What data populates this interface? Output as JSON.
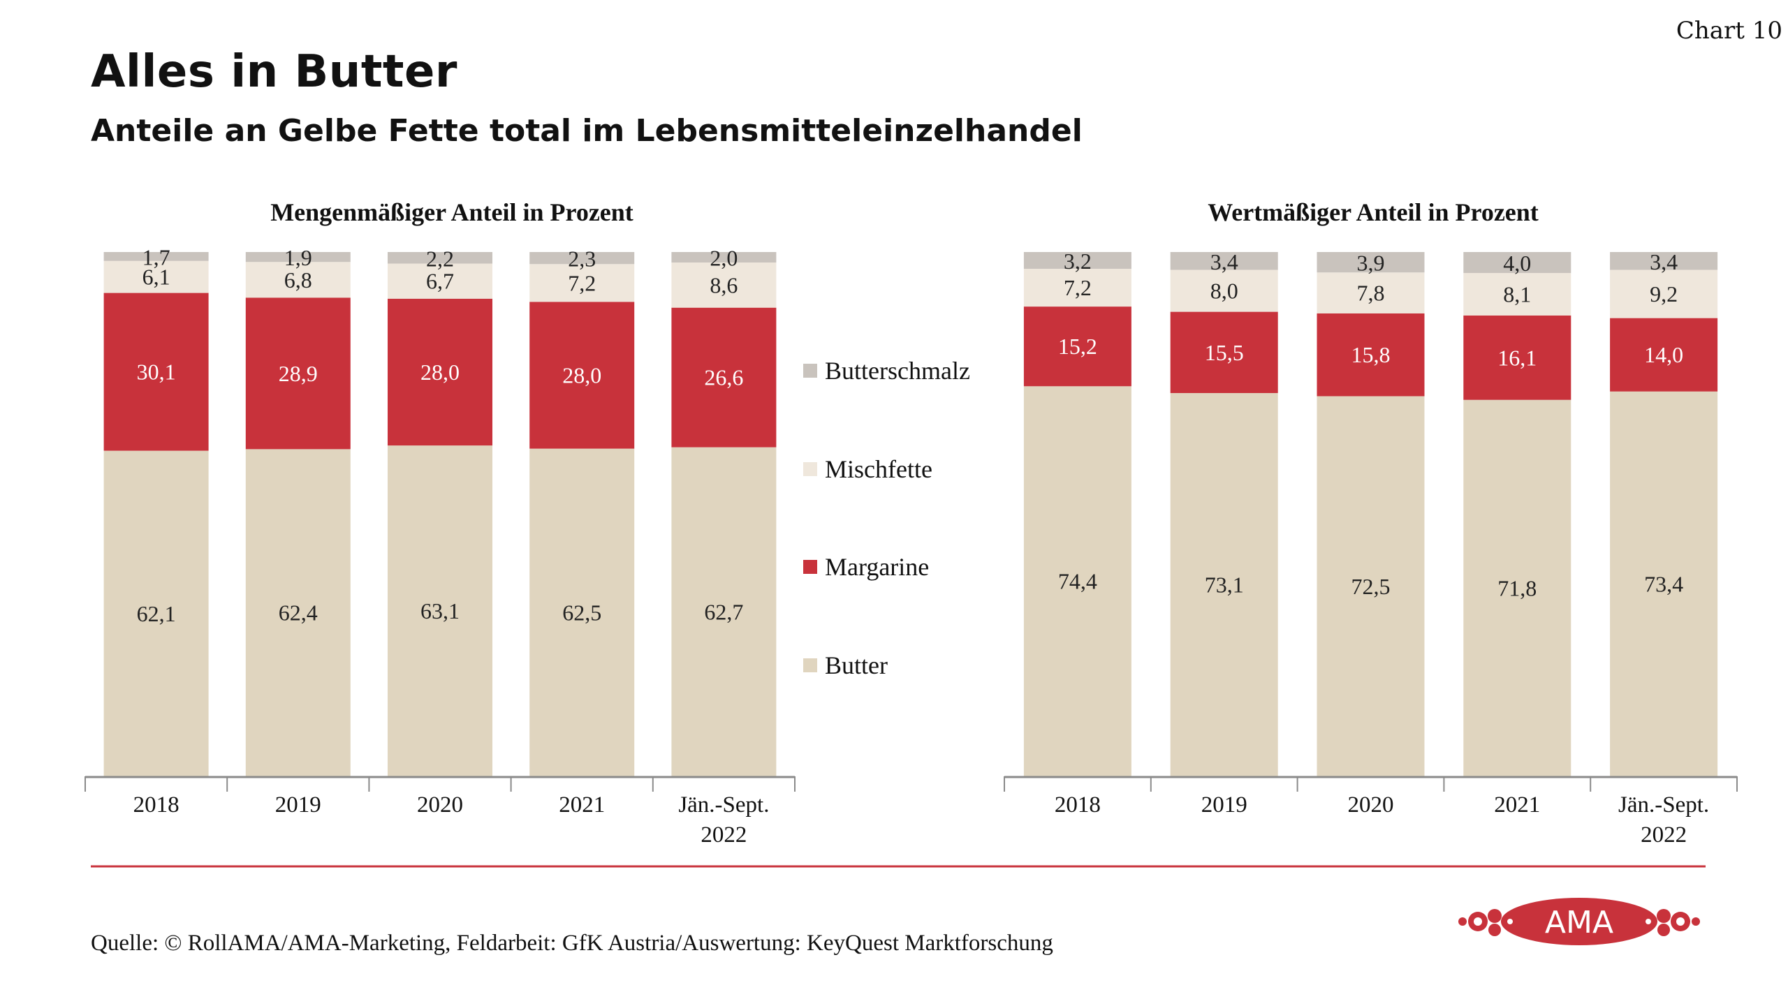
{
  "header": {
    "title": "Alles in Butter",
    "subtitle": "Anteile an Gelbe Fette total im Lebensmitteleinzelhandel",
    "chart_number": "Chart 10"
  },
  "legend": [
    {
      "name": "Butterschmalz",
      "color": "#c9c3bd"
    },
    {
      "name": "Mischfette",
      "color": "#efe7dc"
    },
    {
      "name": "Margarine",
      "color": "#c8323b"
    },
    {
      "name": "Butter",
      "color": "#e0d5bf"
    }
  ],
  "chart_data": [
    {
      "type": "bar",
      "stacked": true,
      "title": "Mengenmäßiger Anteil in Prozent",
      "categories": [
        "2018",
        "2019",
        "2020",
        "2021",
        "Jän.-Sept. 2022"
      ],
      "ylim": [
        0,
        100
      ],
      "series": [
        {
          "name": "Butter",
          "values": [
            62.1,
            62.4,
            63.1,
            62.5,
            62.7
          ],
          "labels": [
            "62,1",
            "62,4",
            "63,1",
            "62,5",
            "62,7"
          ]
        },
        {
          "name": "Margarine",
          "values": [
            30.1,
            28.9,
            28.0,
            28.0,
            26.6
          ],
          "labels": [
            "30,1",
            "28,9",
            "28,0",
            "28,0",
            "26,6"
          ]
        },
        {
          "name": "Mischfette",
          "values": [
            6.1,
            6.8,
            6.7,
            7.2,
            8.6
          ],
          "labels": [
            "6,1",
            "6,8",
            "6,7",
            "7,2",
            "8,6"
          ]
        },
        {
          "name": "Butterschmalz",
          "values": [
            1.7,
            1.9,
            2.2,
            2.3,
            2.0
          ],
          "labels": [
            "1,7",
            "1,9",
            "2,2",
            "2,3",
            "2,0"
          ]
        }
      ]
    },
    {
      "type": "bar",
      "stacked": true,
      "title": "Wertmäßiger Anteil in Prozent",
      "categories": [
        "2018",
        "2019",
        "2020",
        "2021",
        "Jän.-Sept. 2022"
      ],
      "ylim": [
        0,
        100
      ],
      "series": [
        {
          "name": "Butter",
          "values": [
            74.4,
            73.1,
            72.5,
            71.8,
            73.4
          ],
          "labels": [
            "74,4",
            "73,1",
            "72,5",
            "71,8",
            "73,4"
          ]
        },
        {
          "name": "Margarine",
          "values": [
            15.2,
            15.5,
            15.8,
            16.1,
            14.0
          ],
          "labels": [
            "15,2",
            "15,5",
            "15,8",
            "16,1",
            "14,0"
          ]
        },
        {
          "name": "Mischfette",
          "values": [
            7.2,
            8.0,
            7.8,
            8.1,
            9.2
          ],
          "labels": [
            "7,2",
            "8,0",
            "7,8",
            "8,1",
            "9,2"
          ]
        },
        {
          "name": "Butterschmalz",
          "values": [
            3.2,
            3.4,
            3.9,
            4.0,
            3.4
          ],
          "labels": [
            "3,2",
            "3,4",
            "3,9",
            "4,0",
            "3,4"
          ]
        }
      ]
    }
  ],
  "footer": {
    "source": "Quelle: © RollAMA/AMA-Marketing, Feldarbeit: GfK Austria/Auswertung: KeyQuest Marktforschung",
    "logo_text": "AMA",
    "accent_color": "#c8323b"
  }
}
